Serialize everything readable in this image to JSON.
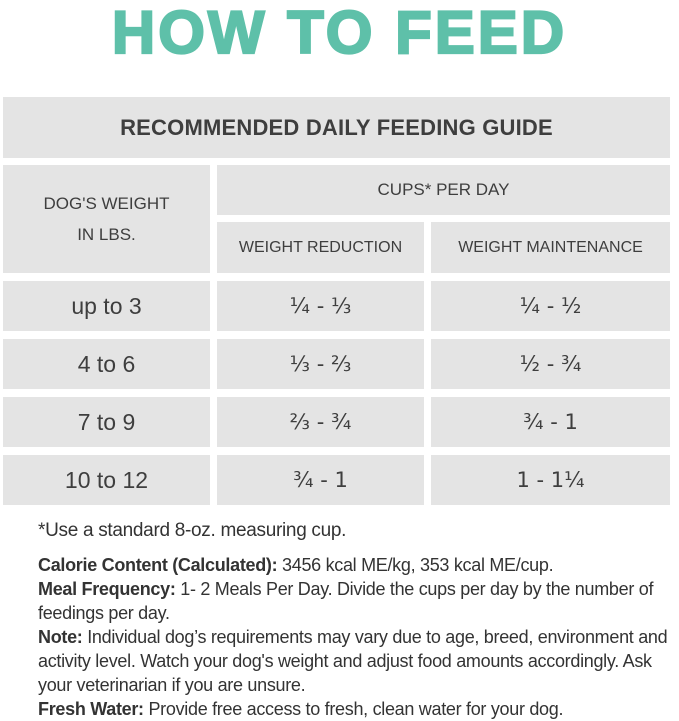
{
  "colors": {
    "accent": "#5ec0a9",
    "cell_bg": "#e4e4e4",
    "text": "#3d3d3d"
  },
  "header": {
    "title": "HOW TO FEED"
  },
  "table": {
    "title": "RECOMMENDED DAILY FEEDING GUIDE",
    "weight_header": {
      "line1": "DOG'S WEIGHT",
      "line2": "IN LBS."
    },
    "cups_header": "CUPS* PER DAY",
    "sub_headers": {
      "reduction": "WEIGHT REDUCTION",
      "maintenance": "WEIGHT MAINTENANCE"
    },
    "rows": [
      {
        "weight": "up to 3",
        "reduction": "¼ - ⅓",
        "maintenance": "¼ - ½"
      },
      {
        "weight": "4 to 6",
        "reduction": "⅓ - ⅔",
        "maintenance": "½ - ¾"
      },
      {
        "weight": "7 to 9",
        "reduction": "⅔ - ¾",
        "maintenance": "¾ - 1"
      },
      {
        "weight": "10 to 12",
        "reduction": "¾ - 1",
        "maintenance": "1 - 1¼"
      }
    ],
    "footnote": "*Use a standard 8-oz. measuring cup."
  },
  "notes": [
    {
      "label": "Calorie Content (Calculated):",
      "text": "3456 kcal ME/kg, 353 kcal ME/cup."
    },
    {
      "label": "Meal Frequency:",
      "text": "1- 2 Meals Per Day. Divide the cups per day by the number of feedings per day."
    },
    {
      "label": "Note:",
      "text": "Individual dog’s requirements may vary due to age, breed, environment and activity level. Watch your dog's weight and adjust food amounts accordingly.  Ask your veterinarian if you are unsure."
    },
    {
      "label": "Fresh Water:",
      "text": "Provide free access to fresh, clean water for your dog."
    }
  ]
}
